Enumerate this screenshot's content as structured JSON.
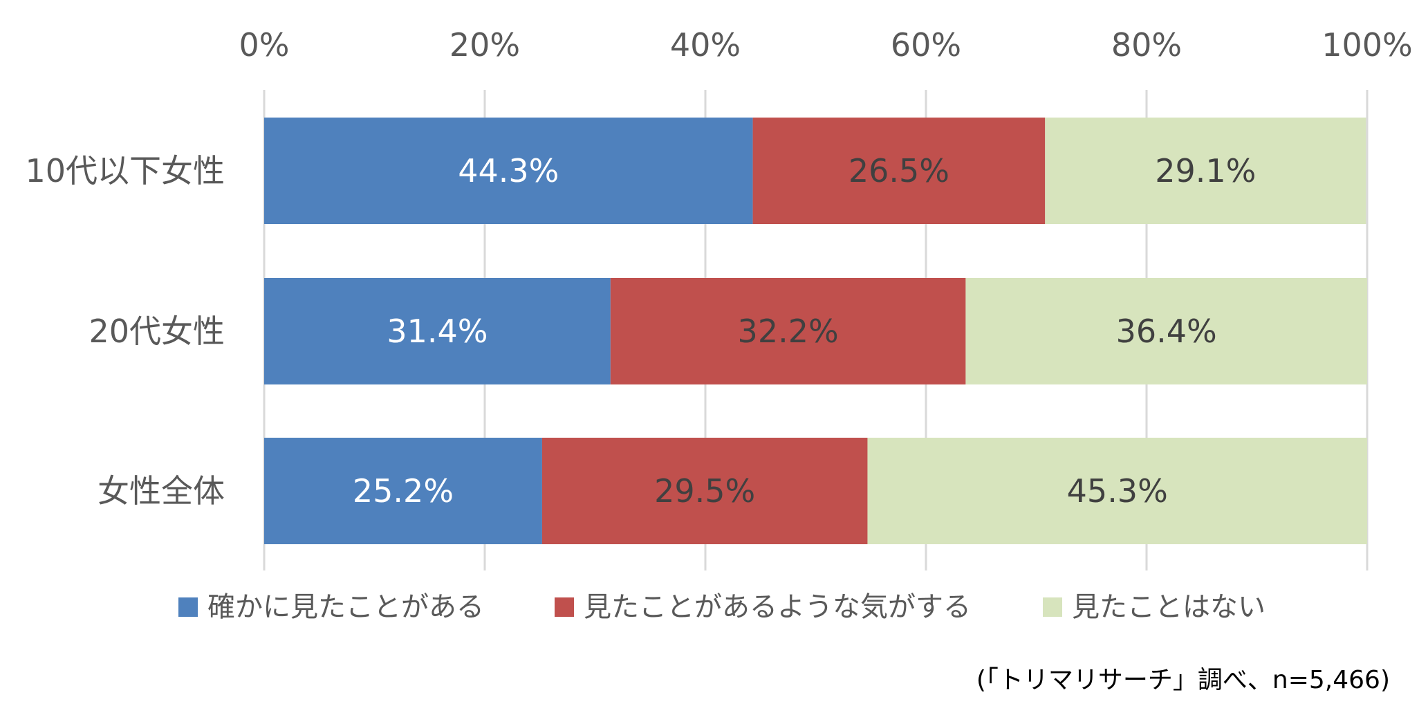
{
  "chart_data": {
    "type": "bar",
    "orientation": "horizontal",
    "stacked": true,
    "categories": [
      "10代以下女性",
      "20代女性",
      "女性全体"
    ],
    "series": [
      {
        "name": "確かに見たことがある",
        "values": [
          44.3,
          31.4,
          25.2
        ],
        "color": "#4f81bd",
        "label_color": "#ffffff"
      },
      {
        "name": "見たことがあるような気がする",
        "values": [
          26.5,
          32.2,
          29.5
        ],
        "color": "#c0504d",
        "label_color": "#404040"
      },
      {
        "name": "見たことはない",
        "values": [
          29.1,
          36.4,
          45.3
        ],
        "color": "#d7e4bd",
        "label_color": "#404040"
      }
    ],
    "value_format": "{v}%",
    "xlim": [
      0,
      100
    ],
    "xticks": [
      0,
      20,
      40,
      60,
      80,
      100
    ],
    "xtick_labels": [
      "0%",
      "20%",
      "40%",
      "60%",
      "80%",
      "100%"
    ],
    "x_axis_position": "top",
    "grid": true,
    "legend_position": "bottom",
    "title": "",
    "xlabel": "",
    "ylabel": ""
  },
  "source_note": "(「トリマリサーチ」調べ、n=5,466)"
}
